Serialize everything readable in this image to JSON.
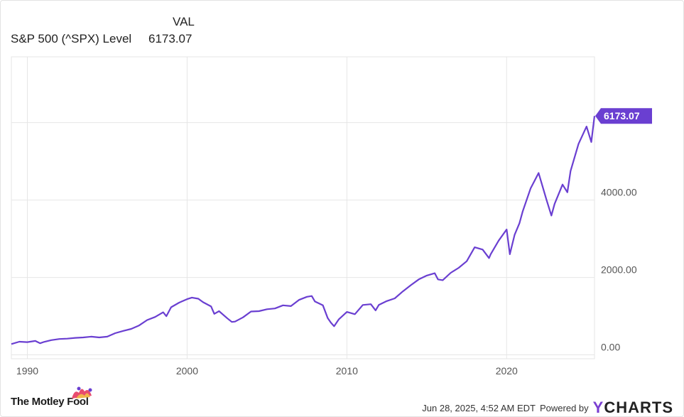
{
  "legend": {
    "header": "VAL",
    "series_name": "S&P 500 (^SPX) Level",
    "series_value": "6173.07"
  },
  "last_value_label": "6173.07",
  "footer": {
    "brand": "The Motley Fool",
    "timestamp": "Jun 28, 2025, 4:52 AM EDT",
    "powered_by": "Powered by",
    "ycharts_y": "Y",
    "ycharts_rest": "CHARTS"
  },
  "colors": {
    "line": "#6a3fd1",
    "badge": "#6a3fd1",
    "grid": "#e6e6e6",
    "text": "#555555"
  },
  "chart_data": {
    "type": "line",
    "title": "",
    "xlabel": "",
    "ylabel": "",
    "xlim": [
      1989,
      2025.5
    ],
    "ylim": [
      -100,
      7700
    ],
    "x_ticks": [
      1990,
      2000,
      2010,
      2020
    ],
    "x_tick_labels": [
      "1990",
      "2000",
      "2010",
      "2020"
    ],
    "y_ticks": [
      0,
      2000,
      4000
    ],
    "y_tick_labels": [
      "0.00",
      "2000.00",
      "4000.00"
    ],
    "extra_gridlines_y": [
      6000
    ],
    "grid": true,
    "series": [
      {
        "name": "S&P 500 (^SPX) Level",
        "x": [
          1989.0,
          1989.5,
          1990.0,
          1990.5,
          1990.8,
          1991.0,
          1991.5,
          1992.0,
          1992.5,
          1993.0,
          1993.5,
          1994.0,
          1994.5,
          1995.0,
          1995.5,
          1996.0,
          1996.5,
          1997.0,
          1997.5,
          1998.0,
          1998.5,
          1998.7,
          1999.0,
          1999.5,
          2000.0,
          2000.3,
          2000.7,
          2001.0,
          2001.5,
          2001.7,
          2002.0,
          2002.5,
          2002.8,
          2003.0,
          2003.5,
          2004.0,
          2004.5,
          2005.0,
          2005.5,
          2006.0,
          2006.5,
          2007.0,
          2007.5,
          2007.8,
          2008.0,
          2008.5,
          2008.8,
          2009.0,
          2009.2,
          2009.5,
          2010.0,
          2010.5,
          2011.0,
          2011.5,
          2011.8,
          2012.0,
          2012.5,
          2013.0,
          2013.5,
          2014.0,
          2014.5,
          2015.0,
          2015.5,
          2015.7,
          2016.0,
          2016.5,
          2017.0,
          2017.5,
          2018.0,
          2018.5,
          2018.9,
          2019.0,
          2019.5,
          2020.0,
          2020.2,
          2020.5,
          2020.8,
          2021.0,
          2021.5,
          2022.0,
          2022.5,
          2022.8,
          2023.0,
          2023.5,
          2023.8,
          2024.0,
          2024.5,
          2025.0,
          2025.3,
          2025.5
        ],
        "y": [
          280,
          340,
          330,
          360,
          300,
          330,
          380,
          410,
          420,
          440,
          450,
          470,
          450,
          470,
          560,
          620,
          670,
          760,
          900,
          980,
          1100,
          1000,
          1230,
          1350,
          1440,
          1480,
          1450,
          1360,
          1250,
          1060,
          1130,
          950,
          850,
          860,
          970,
          1120,
          1130,
          1180,
          1200,
          1280,
          1260,
          1420,
          1500,
          1520,
          1380,
          1280,
          950,
          830,
          740,
          920,
          1110,
          1050,
          1290,
          1310,
          1150,
          1290,
          1390,
          1460,
          1640,
          1800,
          1950,
          2050,
          2110,
          1950,
          1930,
          2120,
          2250,
          2420,
          2780,
          2720,
          2500,
          2600,
          2950,
          3240,
          2600,
          3100,
          3400,
          3700,
          4300,
          4700,
          4000,
          3600,
          3900,
          4400,
          4200,
          4750,
          5450,
          5900,
          5500,
          6173.07
        ]
      }
    ]
  }
}
